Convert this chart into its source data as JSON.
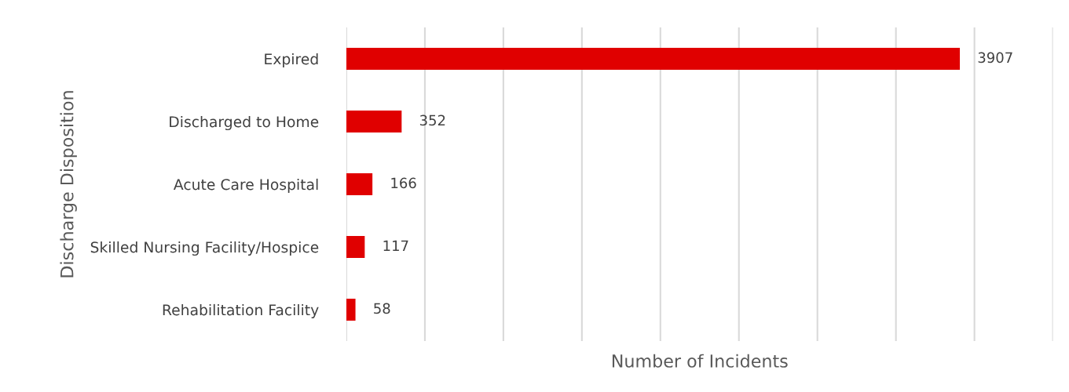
{
  "chart_data": {
    "type": "bar",
    "orientation": "horizontal",
    "ylabel": "Discharge Disposition",
    "xlabel": "Number of Incidents",
    "categories": [
      "Expired",
      "Discharged to Home",
      "Acute Care Hospital",
      "Skilled Nursing Facility/Hospice",
      "Rehabilitation Facility"
    ],
    "values": [
      3907,
      352,
      166,
      117,
      58
    ],
    "color": "#e00000",
    "data_labels": true,
    "xlim": [
      0,
      4500
    ],
    "xticks": [
      {
        "value": 0,
        "label": null
      },
      {
        "value": 500,
        "label": null
      },
      {
        "value": 1000,
        "label": null
      },
      {
        "value": 1500,
        "label": null
      },
      {
        "value": 2000,
        "label": null
      },
      {
        "value": 2500,
        "label": null
      },
      {
        "value": 3000,
        "label": null
      },
      {
        "value": 3500,
        "label": null
      },
      {
        "value": 4000,
        "label": null
      },
      {
        "value": 4500,
        "label": null
      }
    ],
    "grid": "x",
    "tick_labels": "y"
  }
}
